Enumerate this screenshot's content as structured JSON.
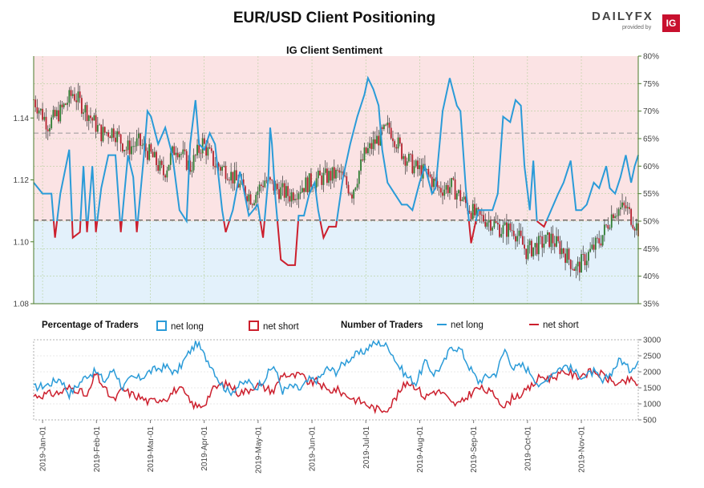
{
  "header": {
    "title": "EUR/USD Client Positioning",
    "subtitle": "IG Client Sentiment",
    "logo_text": "DAILYFX",
    "logo_sub": "provided by",
    "logo_badge": "IG"
  },
  "legend": {
    "pct_heading": "Percentage of Traders",
    "pct_long": "net long",
    "pct_short": "net short",
    "num_heading": "Number of Traders",
    "num_long": "net long",
    "num_short": "net short"
  },
  "colors": {
    "long": "#2a9bd8",
    "short": "#cc1f2d",
    "price_up": "#2e7d32",
    "price_down": "#b5222e",
    "bg_short": "#fbe3e4",
    "bg_long": "#e3f1fb"
  },
  "chart_data": [
    {
      "type": "line",
      "title": "IG Client Sentiment",
      "price_axis": {
        "ylim": [
          1.08,
          1.16
        ],
        "ticks": [
          "1.08",
          "1.10",
          "1.12",
          "1.14"
        ]
      },
      "pct_axis": {
        "ylim": [
          35,
          80
        ],
        "ticks": [
          "35%",
          "40%",
          "45%",
          "50%",
          "55%",
          "60%",
          "65%",
          "70%",
          "75%",
          "80%"
        ]
      },
      "reference_lines": {
        "price": 1.107,
        "pct": 50,
        "pct_upper": 66
      },
      "x_labels": [
        "2019-Jan-01",
        "2019-Feb-01",
        "2019-Mar-01",
        "2019-Apr-01",
        "2019-May-01",
        "2019-Jun-01",
        "2019-Jul-01",
        "2019-Aug-01",
        "2019-Sep-01",
        "2019-Oct-01",
        "2019-Nov-01"
      ],
      "price_close": [
        [
          0,
          1.146
        ],
        [
          8,
          1.138
        ],
        [
          15,
          1.142
        ],
        [
          22,
          1.148
        ],
        [
          30,
          1.142
        ],
        [
          38,
          1.135
        ],
        [
          45,
          1.136
        ],
        [
          52,
          1.13
        ],
        [
          59,
          1.132
        ],
        [
          66,
          1.128
        ],
        [
          73,
          1.122
        ],
        [
          80,
          1.131
        ],
        [
          88,
          1.124
        ],
        [
          95,
          1.132
        ],
        [
          102,
          1.125
        ],
        [
          109,
          1.123
        ],
        [
          116,
          1.118
        ],
        [
          123,
          1.114
        ],
        [
          130,
          1.12
        ],
        [
          137,
          1.117
        ],
        [
          144,
          1.115
        ],
        [
          151,
          1.118
        ],
        [
          158,
          1.12
        ],
        [
          165,
          1.121
        ],
        [
          172,
          1.122
        ],
        [
          179,
          1.116
        ],
        [
          186,
          1.128
        ],
        [
          193,
          1.133
        ],
        [
          200,
          1.137
        ],
        [
          207,
          1.129
        ],
        [
          214,
          1.124
        ],
        [
          221,
          1.122
        ],
        [
          228,
          1.117
        ],
        [
          235,
          1.118
        ],
        [
          242,
          1.113
        ],
        [
          249,
          1.108
        ],
        [
          256,
          1.107
        ],
        [
          263,
          1.104
        ],
        [
          270,
          1.104
        ],
        [
          277,
          1.097
        ],
        [
          284,
          1.099
        ],
        [
          291,
          1.101
        ],
        [
          298,
          1.097
        ],
        [
          305,
          1.091
        ],
        [
          312,
          1.096
        ],
        [
          319,
          1.101
        ],
        [
          326,
          1.11
        ],
        [
          333,
          1.111
        ],
        [
          340,
          1.104
        ]
      ],
      "pct_net_long": [
        [
          0,
          57
        ],
        [
          5,
          55
        ],
        [
          10,
          55
        ],
        [
          12,
          47
        ],
        [
          15,
          55
        ],
        [
          20,
          63
        ],
        [
          22,
          47
        ],
        [
          26,
          48
        ],
        [
          28,
          60
        ],
        [
          30,
          48
        ],
        [
          33,
          60
        ],
        [
          35,
          48
        ],
        [
          38,
          56
        ],
        [
          42,
          62
        ],
        [
          46,
          62
        ],
        [
          49,
          48
        ],
        [
          53,
          62
        ],
        [
          56,
          58
        ],
        [
          58,
          48
        ],
        [
          62,
          62
        ],
        [
          64,
          70
        ],
        [
          66,
          69
        ],
        [
          70,
          64
        ],
        [
          74,
          67
        ],
        [
          78,
          62
        ],
        [
          82,
          52
        ],
        [
          86,
          50
        ],
        [
          88,
          64
        ],
        [
          91,
          72
        ],
        [
          93,
          64
        ],
        [
          96,
          63
        ],
        [
          99,
          66
        ],
        [
          102,
          64
        ],
        [
          106,
          52
        ],
        [
          108,
          48
        ],
        [
          112,
          52
        ],
        [
          116,
          59
        ],
        [
          118,
          56
        ],
        [
          121,
          51
        ],
        [
          126,
          53
        ],
        [
          129,
          47
        ],
        [
          132,
          58
        ],
        [
          133,
          67
        ],
        [
          134,
          64
        ],
        [
          136,
          54
        ],
        [
          139,
          43
        ],
        [
          143,
          42
        ],
        [
          147,
          42
        ],
        [
          149,
          51
        ],
        [
          152,
          51
        ],
        [
          155,
          55
        ],
        [
          158,
          57
        ],
        [
          160,
          52
        ],
        [
          163,
          47
        ],
        [
          166,
          49
        ],
        [
          170,
          49
        ],
        [
          174,
          58
        ],
        [
          178,
          64
        ],
        [
          182,
          69
        ],
        [
          186,
          73
        ],
        [
          188,
          76
        ],
        [
          191,
          74
        ],
        [
          194,
          71
        ],
        [
          196,
          63
        ],
        [
          199,
          57
        ],
        [
          203,
          55
        ],
        [
          207,
          53
        ],
        [
          210,
          53
        ],
        [
          213,
          52
        ],
        [
          217,
          57
        ],
        [
          220,
          60
        ],
        [
          224,
          55
        ],
        [
          226,
          56
        ],
        [
          230,
          70
        ],
        [
          234,
          76
        ],
        [
          238,
          71
        ],
        [
          240,
          70
        ],
        [
          243,
          56
        ],
        [
          246,
          46
        ],
        [
          250,
          52
        ],
        [
          254,
          52
        ],
        [
          258,
          52
        ],
        [
          261,
          55
        ],
        [
          264,
          69
        ],
        [
          268,
          68
        ],
        [
          271,
          72
        ],
        [
          274,
          71
        ],
        [
          276,
          60
        ],
        [
          279,
          52
        ],
        [
          281,
          61
        ],
        [
          283,
          50
        ],
        [
          287,
          49
        ],
        [
          291,
          52
        ],
        [
          295,
          55
        ],
        [
          298,
          57
        ],
        [
          302,
          61
        ],
        [
          305,
          52
        ],
        [
          308,
          52
        ],
        [
          311,
          53
        ],
        [
          315,
          57
        ],
        [
          318,
          56
        ],
        [
          321,
          59
        ],
        [
          322,
          60
        ],
        [
          324,
          56
        ],
        [
          327,
          55
        ],
        [
          330,
          58
        ],
        [
          333,
          62
        ],
        [
          336,
          57
        ],
        [
          338,
          60
        ],
        [
          340,
          62
        ]
      ],
      "series": [
        {
          "name": "net long",
          "color": "#2a9bd8"
        },
        {
          "name": "net short",
          "color": "#cc1f2d"
        }
      ]
    },
    {
      "type": "line",
      "title": "Number of Traders",
      "ylim": [
        500,
        3000
      ],
      "y_ticks": [
        "500",
        "1000",
        "1500",
        "2000",
        "2500",
        "3000"
      ],
      "traders_long": [
        [
          0,
          1500
        ],
        [
          8,
          1600
        ],
        [
          15,
          1800
        ],
        [
          20,
          1300
        ],
        [
          25,
          1600
        ],
        [
          30,
          1900
        ],
        [
          35,
          2000
        ],
        [
          40,
          1700
        ],
        [
          45,
          2100
        ],
        [
          50,
          1500
        ],
        [
          55,
          1800
        ],
        [
          60,
          1800
        ],
        [
          65,
          2000
        ],
        [
          70,
          2100
        ],
        [
          75,
          2150
        ],
        [
          80,
          1950
        ],
        [
          84,
          2300
        ],
        [
          88,
          2650
        ],
        [
          92,
          2900
        ],
        [
          96,
          2500
        ],
        [
          100,
          2200
        ],
        [
          105,
          1650
        ],
        [
          110,
          1350
        ],
        [
          115,
          1550
        ],
        [
          120,
          1700
        ],
        [
          125,
          1500
        ],
        [
          130,
          1800
        ],
        [
          135,
          2200
        ],
        [
          140,
          1400
        ],
        [
          145,
          1550
        ],
        [
          150,
          1450
        ],
        [
          155,
          1750
        ],
        [
          160,
          1750
        ],
        [
          165,
          2100
        ],
        [
          170,
          2000
        ],
        [
          175,
          2300
        ],
        [
          180,
          2500
        ],
        [
          185,
          2600
        ],
        [
          190,
          2850
        ],
        [
          195,
          2900
        ],
        [
          200,
          2750
        ],
        [
          205,
          2200
        ],
        [
          210,
          1850
        ],
        [
          215,
          1650
        ],
        [
          220,
          2300
        ],
        [
          225,
          1950
        ],
        [
          230,
          2200
        ],
        [
          235,
          2800
        ],
        [
          240,
          2700
        ],
        [
          245,
          2150
        ],
        [
          250,
          1700
        ],
        [
          255,
          1850
        ],
        [
          260,
          1950
        ],
        [
          265,
          2700
        ],
        [
          270,
          2100
        ],
        [
          275,
          2200
        ],
        [
          280,
          1950
        ],
        [
          285,
          1500
        ],
        [
          290,
          1900
        ],
        [
          295,
          2100
        ],
        [
          300,
          2200
        ],
        [
          305,
          1950
        ],
        [
          310,
          1850
        ],
        [
          315,
          2000
        ],
        [
          320,
          1650
        ],
        [
          325,
          2000
        ],
        [
          330,
          2400
        ],
        [
          335,
          2050
        ],
        [
          340,
          2350
        ]
      ],
      "traders_short": [
        [
          0,
          1250
        ],
        [
          8,
          1300
        ],
        [
          15,
          1350
        ],
        [
          20,
          1500
        ],
        [
          25,
          1450
        ],
        [
          30,
          1200
        ],
        [
          35,
          1950
        ],
        [
          40,
          1450
        ],
        [
          45,
          1100
        ],
        [
          50,
          1450
        ],
        [
          55,
          1300
        ],
        [
          60,
          1200
        ],
        [
          65,
          1050
        ],
        [
          70,
          1150
        ],
        [
          75,
          1200
        ],
        [
          80,
          1450
        ],
        [
          84,
          1400
        ],
        [
          88,
          1050
        ],
        [
          92,
          900
        ],
        [
          96,
          1000
        ],
        [
          100,
          1400
        ],
        [
          105,
          1600
        ],
        [
          110,
          1600
        ],
        [
          115,
          1350
        ],
        [
          120,
          1400
        ],
        [
          125,
          1600
        ],
        [
          130,
          1500
        ],
        [
          135,
          1400
        ],
        [
          140,
          1950
        ],
        [
          145,
          1850
        ],
        [
          150,
          1900
        ],
        [
          155,
          1650
        ],
        [
          160,
          1700
        ],
        [
          165,
          1400
        ],
        [
          170,
          1450
        ],
        [
          175,
          1300
        ],
        [
          180,
          1150
        ],
        [
          185,
          1050
        ],
        [
          190,
          900
        ],
        [
          195,
          800
        ],
        [
          200,
          900
        ],
        [
          205,
          1300
        ],
        [
          210,
          1700
        ],
        [
          215,
          1550
        ],
        [
          220,
          1200
        ],
        [
          225,
          1400
        ],
        [
          230,
          1350
        ],
        [
          235,
          1000
        ],
        [
          240,
          1000
        ],
        [
          245,
          1300
        ],
        [
          250,
          1500
        ],
        [
          255,
          1400
        ],
        [
          260,
          1250
        ],
        [
          265,
          900
        ],
        [
          270,
          1250
        ],
        [
          275,
          1300
        ],
        [
          280,
          1550
        ],
        [
          285,
          1850
        ],
        [
          290,
          1800
        ],
        [
          295,
          1900
        ],
        [
          300,
          2000
        ],
        [
          305,
          1850
        ],
        [
          310,
          1950
        ],
        [
          315,
          2000
        ],
        [
          320,
          1900
        ],
        [
          325,
          1700
        ],
        [
          330,
          1600
        ],
        [
          335,
          1750
        ],
        [
          340,
          1600
        ]
      ],
      "series": [
        {
          "name": "net long",
          "color": "#2a9bd8"
        },
        {
          "name": "net short",
          "color": "#cc1f2d"
        }
      ]
    }
  ]
}
